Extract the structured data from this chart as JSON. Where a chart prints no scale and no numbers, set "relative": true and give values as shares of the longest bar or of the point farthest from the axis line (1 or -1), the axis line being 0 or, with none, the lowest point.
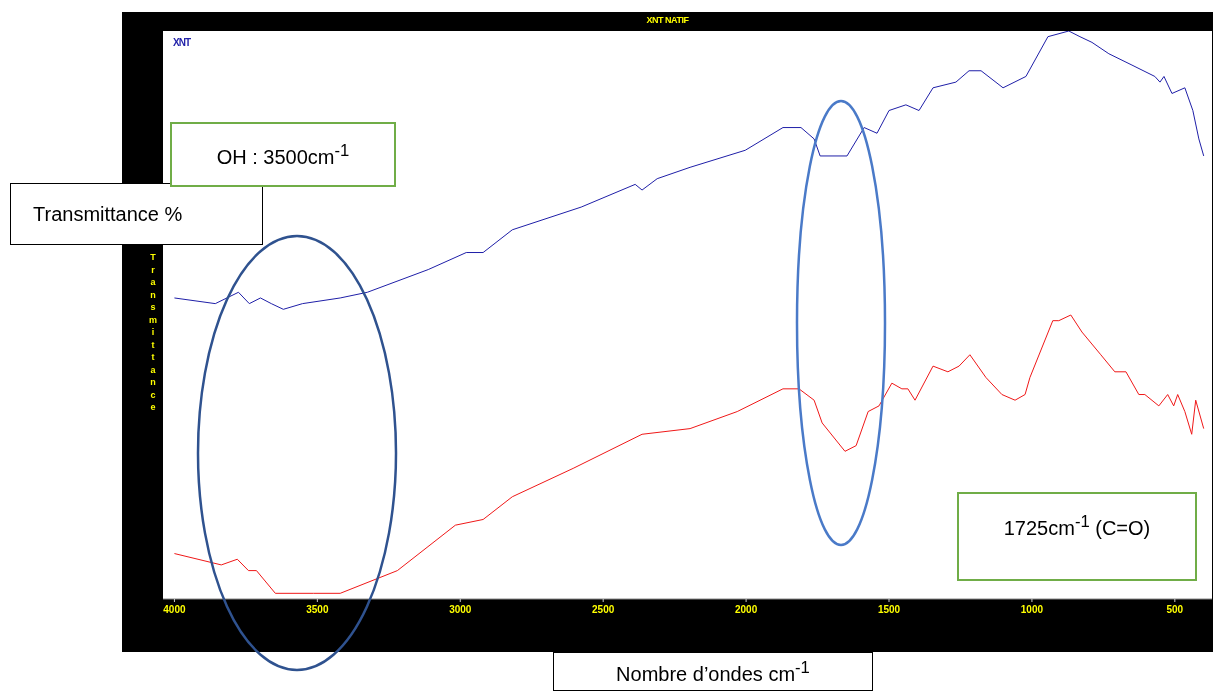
{
  "chart_data": {
    "type": "line",
    "title": "XNT NATIF",
    "xlabel": "Nombre d’ondes cm$^{-1}$",
    "ylabel": "Transmittance",
    "relative": true,
    "xlim": [
      4040,
      370
    ],
    "xticks": [
      4000,
      3500,
      3000,
      2500,
      2000,
      1500,
      1000,
      500
    ],
    "grid": false,
    "legend": "top left",
    "marker": "none",
    "line_style": "solid",
    "annotations": [
      "Transmittance %",
      "OH : 3500cm$^{-1}$",
      "1725cm$^{-1}$ (C=O)"
    ],
    "series": [
      {
        "name": "XNT",
        "color": "#1f1fa8",
        "x": [
          4000,
          3857,
          3776,
          3738,
          3699,
          3661,
          3619,
          3552,
          3420,
          3325,
          3112,
          2979,
          2920,
          2818,
          2577,
          2388,
          2364,
          2311,
          2196,
          2003,
          1871,
          1808,
          1762,
          1741,
          1696,
          1647,
          1587,
          1542,
          1500,
          1441,
          1395,
          1346,
          1266,
          1220,
          1178,
          1101,
          1021,
          944,
          871,
          832,
          790,
          731,
          650,
          570,
          552,
          538,
          510,
          465,
          437,
          416,
          399
        ],
        "values": [
          0.53,
          0.52,
          0.54,
          0.52,
          0.53,
          0.52,
          0.51,
          0.52,
          0.53,
          0.54,
          0.58,
          0.61,
          0.61,
          0.65,
          0.69,
          0.73,
          0.72,
          0.74,
          0.76,
          0.79,
          0.83,
          0.83,
          0.81,
          0.78,
          0.78,
          0.78,
          0.83,
          0.82,
          0.86,
          0.87,
          0.86,
          0.9,
          0.91,
          0.93,
          0.93,
          0.9,
          0.92,
          0.99,
          1.0,
          0.99,
          0.98,
          0.96,
          0.94,
          0.92,
          0.91,
          0.92,
          0.89,
          0.9,
          0.86,
          0.81,
          0.78
        ]
      },
      {
        "color": "#f01818",
        "x": [
          4000,
          3836,
          3780,
          3741,
          3713,
          3647,
          3514,
          3420,
          3220,
          3017,
          2920,
          2818,
          2605,
          2364,
          2196,
          2031,
          1871,
          1815,
          1762,
          1734,
          1654,
          1615,
          1573,
          1535,
          1490,
          1455,
          1434,
          1409,
          1346,
          1294,
          1255,
          1217,
          1161,
          1105,
          1059,
          1024,
          1007,
          927,
          906,
          864,
          825,
          759,
          710,
          671,
          626,
          605,
          556,
          525,
          504,
          490,
          465,
          441,
          427,
          399
        ],
        "values": [
          0.08,
          0.06,
          0.07,
          0.05,
          0.05,
          0.01,
          0.01,
          0.01,
          0.05,
          0.13,
          0.14,
          0.18,
          0.23,
          0.29,
          0.3,
          0.33,
          0.37,
          0.37,
          0.35,
          0.31,
          0.26,
          0.27,
          0.33,
          0.34,
          0.38,
          0.37,
          0.37,
          0.35,
          0.41,
          0.4,
          0.41,
          0.43,
          0.39,
          0.36,
          0.35,
          0.36,
          0.39,
          0.49,
          0.49,
          0.5,
          0.47,
          0.43,
          0.4,
          0.4,
          0.36,
          0.36,
          0.34,
          0.36,
          0.34,
          0.36,
          0.33,
          0.29,
          0.35,
          0.3
        ]
      }
    ]
  }
}
